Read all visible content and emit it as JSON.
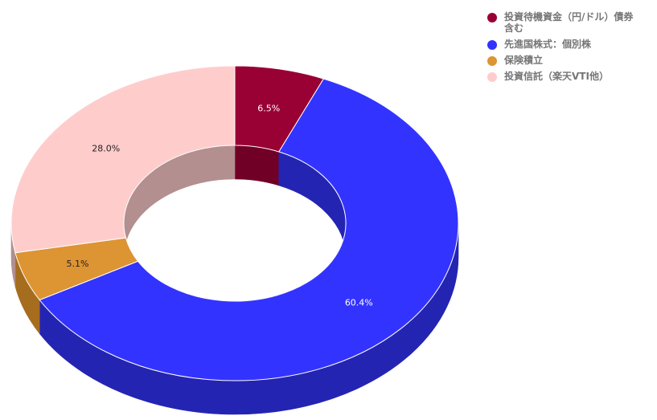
{
  "chart_data": {
    "type": "pie",
    "style": "3d-donut",
    "legend_position": "right",
    "slices": [
      {
        "name": "投資待機資金（円/ドル）債券含む",
        "value": 6.5,
        "label": "6.5%",
        "color": "#990033",
        "side_color": "#700026",
        "label_color": "#ffffff"
      },
      {
        "name": "先進国株式：個別株",
        "value": 60.4,
        "label": "60.4%",
        "color": "#3333ff",
        "side_color": "#2424b3",
        "label_color": "#ffffff"
      },
      {
        "name": "保険積立",
        "value": 5.1,
        "label": "5.1%",
        "color": "#dd9433",
        "side_color": "#a66d1f",
        "label_color": "#222222"
      },
      {
        "name": "投資信託（楽天VTI他）",
        "value": 28.0,
        "label": "28.0%",
        "color": "#ffcccc",
        "side_color": "#b38f8f",
        "label_color": "#222222"
      }
    ]
  }
}
